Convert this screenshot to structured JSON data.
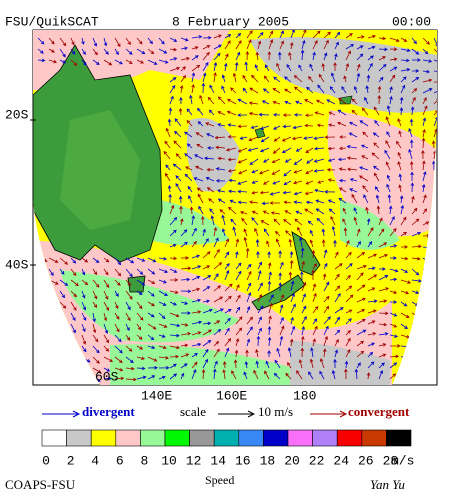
{
  "header": {
    "product": "FSU/QuikSCAT",
    "date": "8 February 2005",
    "time": "00:00"
  },
  "map": {
    "lat_labels": [
      "20S",
      "40S",
      "60S"
    ],
    "lon_labels": [
      "140E",
      "160E",
      "180"
    ]
  },
  "legend": {
    "divergent": "divergent",
    "scale": "scale",
    "scale_value": "10 m/s",
    "convergent": "convergent",
    "speed_ticks": [
      "0",
      "2",
      "4",
      "6",
      "8",
      "10",
      "12",
      "14",
      "16",
      "18",
      "20",
      "22",
      "24",
      "26",
      "28"
    ],
    "speed_unit": "m/s",
    "colors": [
      "#ffffff",
      "#c8c8c8",
      "#ffff00",
      "#ffc8c8",
      "#98f898",
      "#00f800",
      "#989898",
      "#00b0b0",
      "#3888f8",
      "#0000c8",
      "#f870f8",
      "#b080f8",
      "#f80000",
      "#c83800",
      "#000000"
    ]
  },
  "footer": {
    "credit": "COAPS-FSU",
    "caption": "Speed",
    "author": "Yan Yu"
  }
}
